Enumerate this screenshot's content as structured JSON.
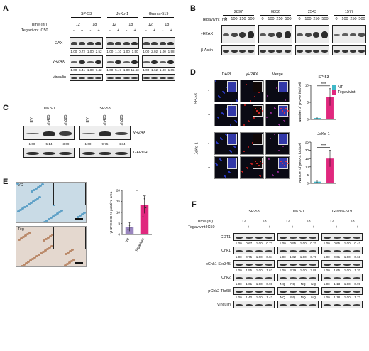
{
  "panels": {
    "A": "A",
    "B": "B",
    "C": "C",
    "D": "D",
    "E": "E",
    "F": "F"
  },
  "panelA": {
    "lines": [
      "SP-53",
      "JeKo-1",
      "Granta-519"
    ],
    "time_label": "Time (hr)",
    "teg_label": "Tegavivint IC50",
    "times": [
      "12",
      "18"
    ],
    "signs": [
      "-",
      "+",
      "-",
      "+"
    ],
    "rows": [
      {
        "label": "H2AX",
        "values": [
          [
            "1.00",
            "0.72",
            "1.00",
            "2.52"
          ],
          [
            "1.00",
            "1.10",
            "1.00",
            "1.50"
          ],
          [
            "1.00",
            "2.02",
            "1.00",
            "1.98"
          ]
        ]
      },
      {
        "label": "γH2AX",
        "values": [
          [
            "1.00",
            "5.41",
            "1.00",
            "7.42"
          ],
          [
            "1.00",
            "5.47",
            "1.00",
            "11.63"
          ],
          [
            "1.00",
            "1.62",
            "1.00",
            "1.05"
          ]
        ]
      },
      {
        "label": "Vinculin",
        "values": null
      }
    ]
  },
  "panelB": {
    "teg_label": "Tegavivint (nM)",
    "lines": [
      "2897",
      "0802",
      "2543",
      "1577"
    ],
    "doses": [
      "0",
      "100",
      "250",
      "500"
    ],
    "rows": [
      "γH2AX",
      "β Actin"
    ]
  },
  "panelC": {
    "lines": [
      "JeKo-1",
      "SP-53"
    ],
    "lanes": [
      "EV",
      "sh425",
      "sh525"
    ],
    "row1": "γH2AX",
    "row2": "GAPDH",
    "values": [
      [
        "1.00",
        "5.14",
        "3.09"
      ],
      [
        "1.00",
        "9.75",
        "4.34"
      ]
    ]
  },
  "panelD": {
    "cols": [
      "DAPI",
      "γH2AX",
      "Merge"
    ],
    "lines": [
      "SP-53",
      "JeKo-1"
    ],
    "signs": [
      "-",
      "+",
      "-",
      "+"
    ],
    "chart_data": [
      {
        "type": "bar",
        "title": "SP-53",
        "ylabel": "Number of γH2AX foci/cell",
        "categories": [
          "NT",
          "Tegavivint"
        ],
        "values": [
          0.4,
          6.5
        ],
        "errors": [
          0.3,
          2.5
        ],
        "ylim": [
          0,
          10
        ],
        "yticks": [
          "0",
          "5",
          "10"
        ],
        "significance": "****",
        "colors": [
          "#3fb8c8",
          "#e0287e"
        ]
      },
      {
        "type": "bar",
        "title": "JeKo-1",
        "ylabel": "Number of γH2AX foci/cell",
        "categories": [
          "NT",
          "Tegavivint"
        ],
        "values": [
          1.0,
          15.0
        ],
        "errors": [
          1.0,
          5.0
        ],
        "ylim": [
          0,
          25
        ],
        "yticks": [
          "0",
          "5",
          "10",
          "15",
          "20",
          "25"
        ],
        "significance": "****",
        "colors": [
          "#3fb8c8",
          "#e0287e"
        ]
      }
    ],
    "legend": [
      "NT",
      "Tegavivint"
    ]
  },
  "panelE": {
    "img_labels": [
      "VC",
      "Teg"
    ],
    "chart_data": {
      "type": "bar",
      "ylabel": "γH2AX IHC % positive area",
      "categories": [
        "VC",
        "Tegavivint"
      ],
      "values": [
        3.5,
        13.5
      ],
      "errors": [
        2.0,
        4.0
      ],
      "ylim": [
        0,
        20
      ],
      "yticks": [
        "0",
        "5",
        "10",
        "15",
        "20"
      ],
      "significance": "*",
      "colors": [
        "#9a86c0",
        "#e0287e"
      ]
    }
  },
  "panelF": {
    "lines": [
      "SP-53",
      "JeKo-1",
      "Granta-519"
    ],
    "time_label": "Time (hr)",
    "teg_label": "Tegavivint IC50",
    "times": [
      "12",
      "18"
    ],
    "signs": [
      "-",
      "+",
      "-",
      "+"
    ],
    "rows": [
      {
        "label": "CDT1",
        "values": [
          [
            "1.00",
            "0.67",
            "1.00",
            "0.72"
          ],
          [
            "1.00",
            "0.95",
            "1.00",
            "0.70"
          ],
          [
            "1.00",
            "0.65",
            "1.00",
            "0.41"
          ]
        ]
      },
      {
        "label": "Chk1",
        "values": [
          [
            "1.00",
            "0.75",
            "1.00",
            "0.84"
          ],
          [
            "1.00",
            "1.02",
            "1.00",
            "0.70"
          ],
          [
            "1.00",
            "0.61",
            "1.00",
            "0.61"
          ]
        ]
      },
      {
        "label": "pChk1 Ser345",
        "values": [
          [
            "1.00",
            "1.55",
            "1.00",
            "1.63"
          ],
          [
            "1.00",
            "3.39",
            "1.00",
            "3.89"
          ],
          [
            "1.00",
            "1.65",
            "1.00",
            "1.20"
          ]
        ]
      },
      {
        "label": "Chk2",
        "values": [
          [
            "1.00",
            "1.01",
            "1.00",
            "0.98"
          ],
          [
            "NQ",
            "NQ",
            "NQ",
            "NQ"
          ],
          [
            "1.00",
            "1.13",
            "1.00",
            "0.99"
          ]
        ]
      },
      {
        "label": "pChk2 Thr68",
        "values": [
          [
            "1.00",
            "1.40",
            "1.00",
            "1.42"
          ],
          [
            "NQ",
            "NQ",
            "NQ",
            "NQ"
          ],
          [
            "1.00",
            "1.18",
            "1.00",
            "1.72"
          ]
        ]
      },
      {
        "label": "Vinculin",
        "values": null
      }
    ]
  }
}
